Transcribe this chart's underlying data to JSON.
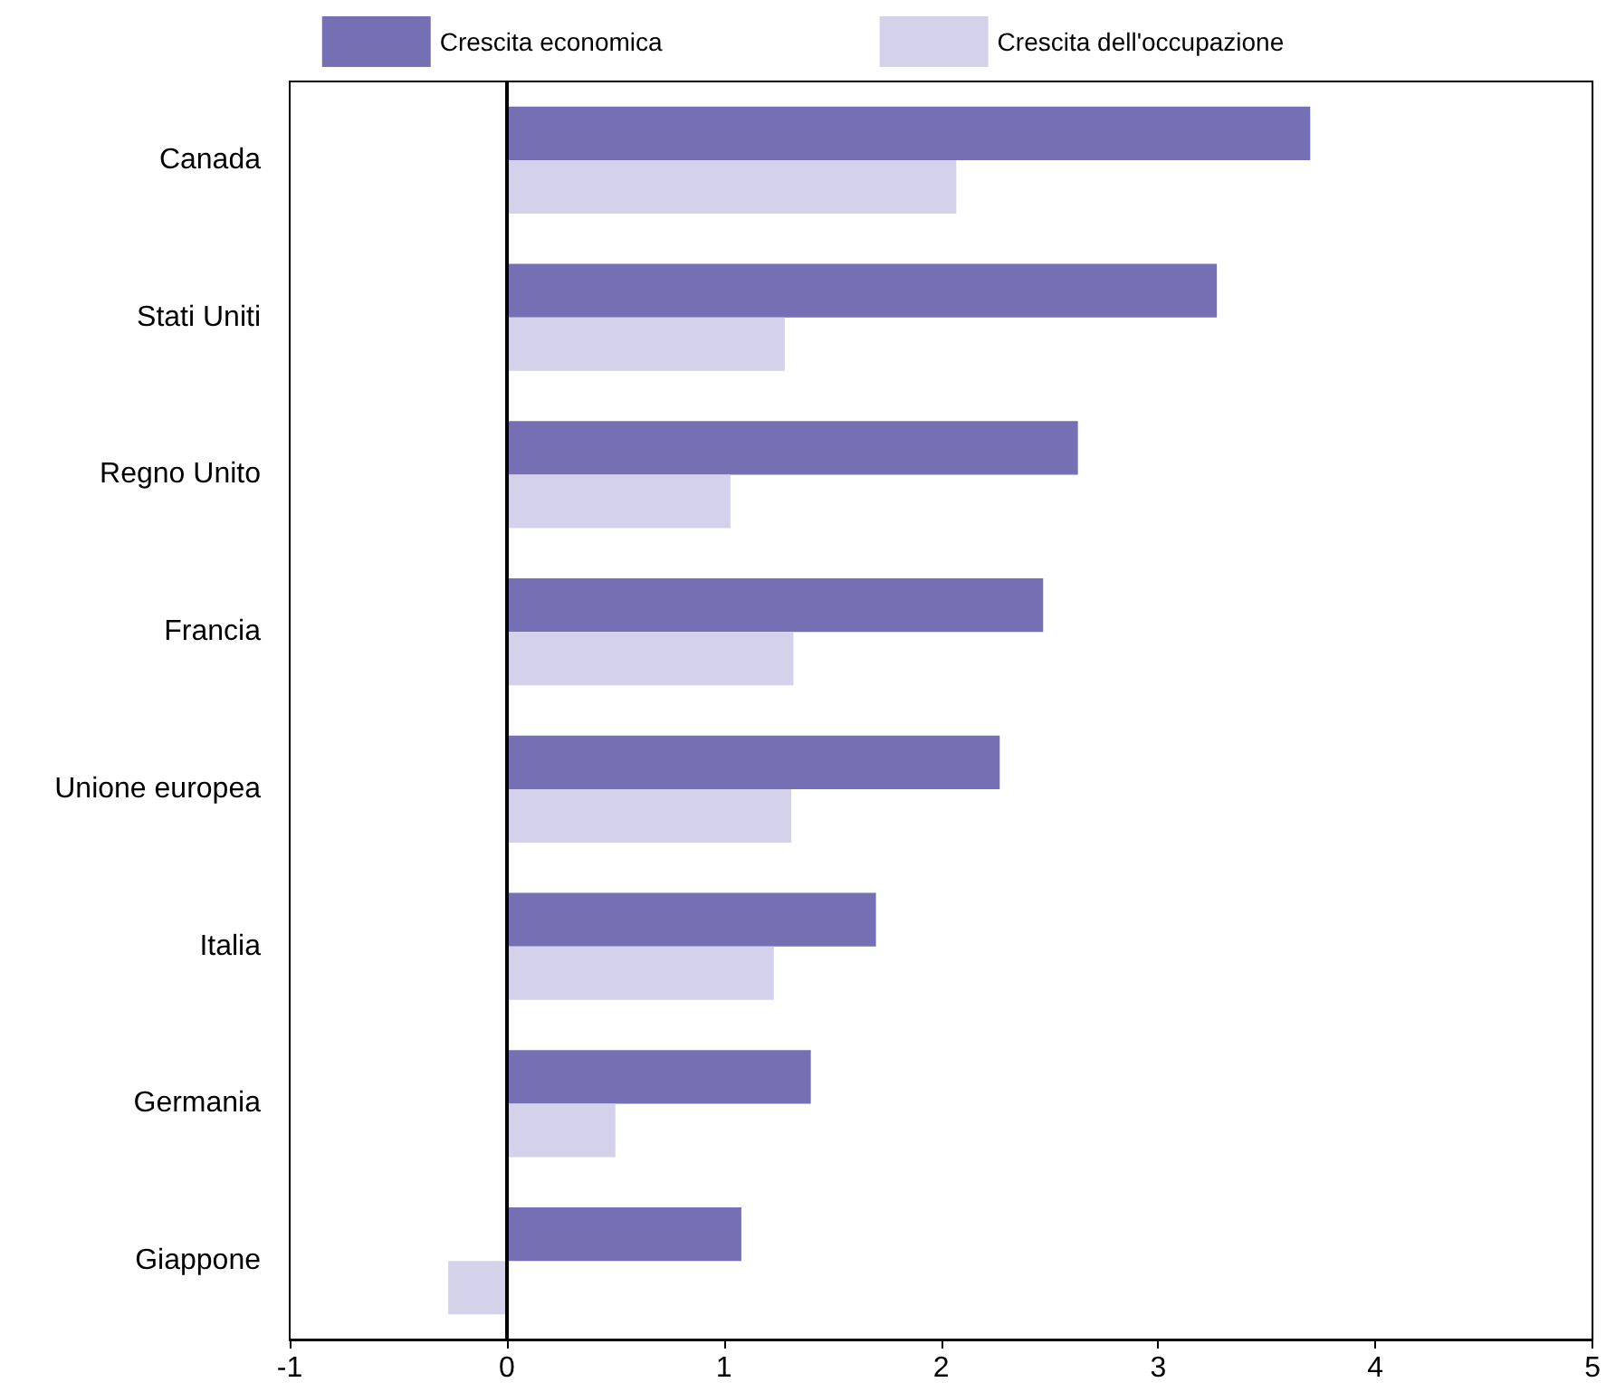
{
  "chart_data": {
    "type": "bar",
    "orientation": "horizontal",
    "categories": [
      "Canada",
      "Stati Uniti",
      "Regno Unito",
      "Francia",
      "Unione europea",
      "Italia",
      "Germania",
      "Giappone"
    ],
    "series": [
      {
        "name": "Crescita economica",
        "color": "#7570b3",
        "values": [
          3.7,
          3.27,
          2.63,
          2.47,
          2.27,
          1.7,
          1.4,
          1.08
        ]
      },
      {
        "name": "Crescita dell'occupazione",
        "color": "#d4d2ea",
        "values": [
          2.07,
          1.28,
          1.03,
          1.32,
          1.31,
          1.23,
          0.5,
          -0.27
        ]
      }
    ],
    "xlim": [
      -1,
      5
    ],
    "xticks": [
      -1,
      0,
      1,
      2,
      3,
      4,
      5
    ],
    "grid": false,
    "legend": "top",
    "ref_lines": [
      {
        "axis": "x",
        "value": 0,
        "color": "#000000"
      }
    ]
  }
}
